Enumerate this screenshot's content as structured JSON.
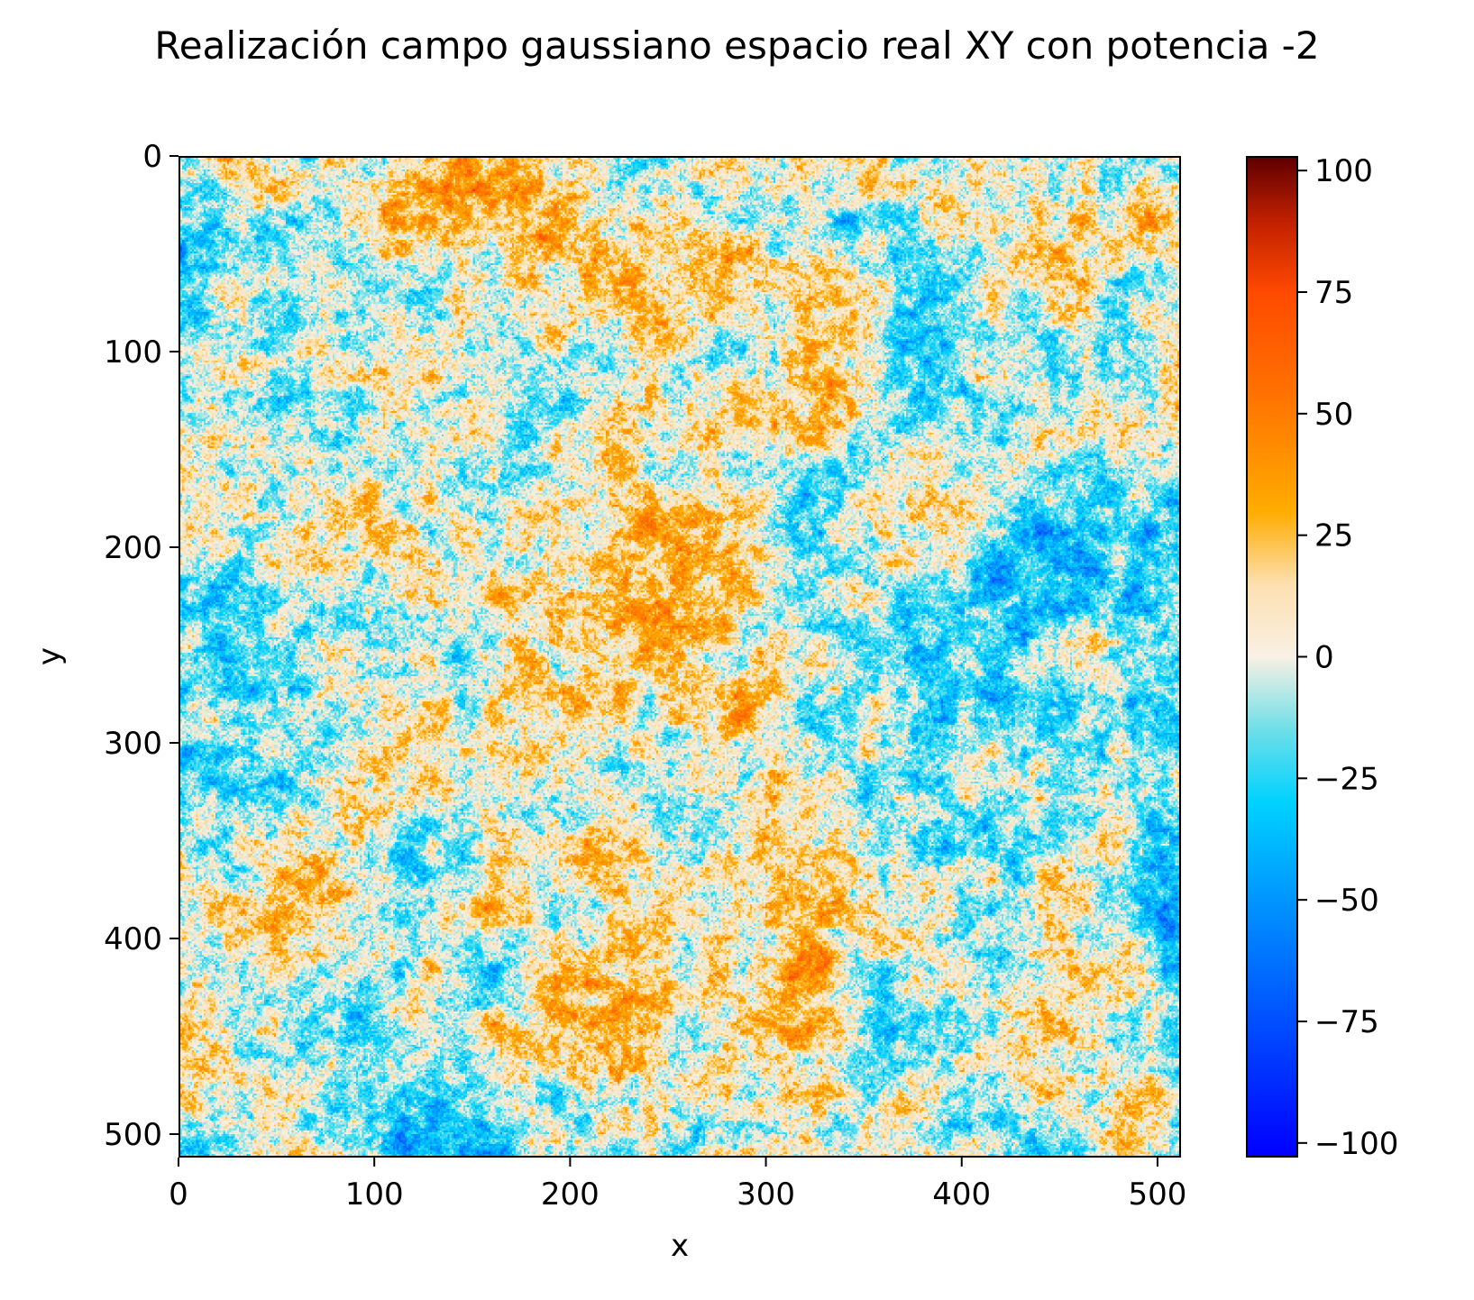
{
  "chart_data": {
    "type": "heatmap",
    "title": "Realización campo gaussiano espacio real XY con potencia -2",
    "xlabel": "x",
    "ylabel": "y",
    "xlim": [
      0,
      512
    ],
    "ylim": [
      512,
      0
    ],
    "x_ticks": [
      0,
      100,
      200,
      300,
      400,
      500
    ],
    "x_tick_labels": [
      "0",
      "100",
      "200",
      "300",
      "400",
      "500"
    ],
    "y_ticks": [
      0,
      100,
      200,
      300,
      400,
      500
    ],
    "y_tick_labels": [
      "0",
      "100",
      "200",
      "300",
      "400",
      "500"
    ],
    "grid_size": [
      512,
      512
    ],
    "color_range": [
      -103,
      103
    ],
    "colorbar": {
      "ticks": [
        100,
        75,
        50,
        25,
        0,
        -25,
        -50,
        -75,
        -100
      ],
      "tick_labels": [
        "100",
        "75",
        "50",
        "25",
        "0",
        "−25",
        "−50",
        "−75",
        "−100"
      ],
      "colormap": [
        {
          "v": -103,
          "color": "#0000ff"
        },
        {
          "v": -75,
          "color": "#0050ff"
        },
        {
          "v": -50,
          "color": "#0096ff"
        },
        {
          "v": -30,
          "color": "#00d2ff"
        },
        {
          "v": -15,
          "color": "#6fdfe8"
        },
        {
          "v": 0,
          "color": "#f8f0e4"
        },
        {
          "v": 15,
          "color": "#fde0b0"
        },
        {
          "v": 30,
          "color": "#ffac00"
        },
        {
          "v": 55,
          "color": "#ff7000"
        },
        {
          "v": 75,
          "color": "#ff4a00"
        },
        {
          "v": 90,
          "color": "#c02000"
        },
        {
          "v": 103,
          "color": "#600000"
        }
      ]
    },
    "grid": false
  }
}
